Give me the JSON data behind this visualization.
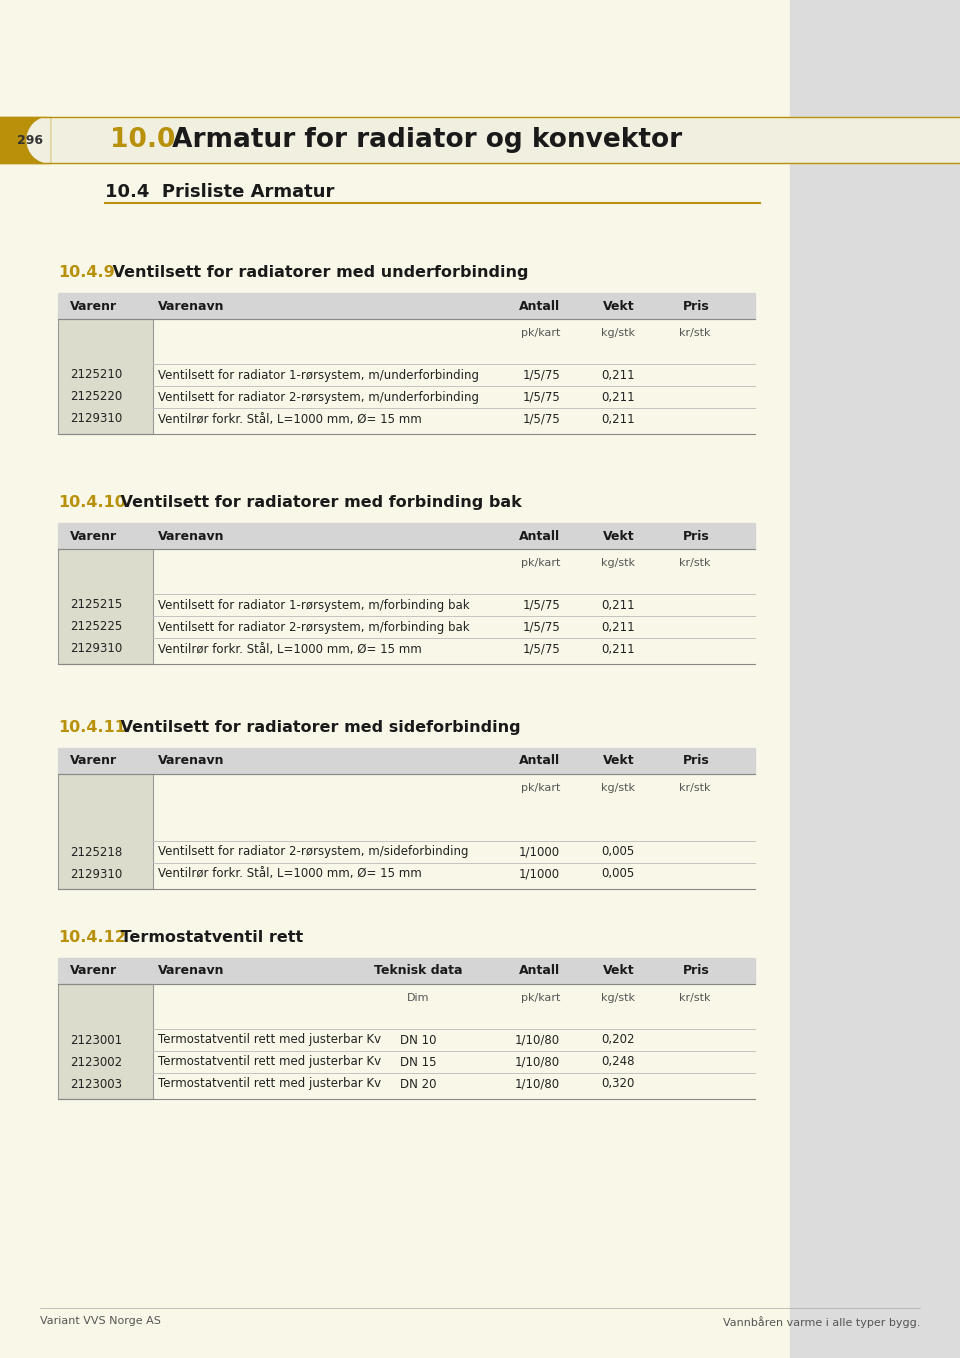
{
  "page_num": "296",
  "main_title_num": "10.0",
  "main_title_text": " Armatur for radiator og konvektor",
  "section_title": "10.4  Prisliste Armatur",
  "bg_color": "#F9F8E8",
  "header_bar_bg": "#F0EFE0",
  "header_bar_gold_left": "#B8900A",
  "right_panel_color": "#DCDCDC",
  "table_header_bg": "#D5D5D5",
  "table_row_line_color": "#BBBBBB",
  "gold_color": "#B8900A",
  "img_box_bg": "#DCDCCC",
  "img_box_border": "#999999",
  "sections": [
    {
      "section_num": "10.4.9",
      "section_title": " Ventilsett for radiatorer med underforbinding",
      "col_headers": [
        "Varenr",
        "Varenavn",
        "Antall",
        "Vekt",
        "Pris"
      ],
      "col_subheaders": [
        "",
        "",
        "pk/kart",
        "kg/stk",
        "kr/stk"
      ],
      "has_teknisk": false,
      "rows": [
        [
          "2125210",
          "Ventilsett for radiator 1-rørsystem, m/underforbinding",
          "1/5/75",
          "0,211",
          ""
        ],
        [
          "2125220",
          "Ventilsett for radiator 2-rørsystem, m/underforbinding",
          "1/5/75",
          "0,211",
          ""
        ],
        [
          "2129310",
          "Ventilrør forkr. Stål, L=1000 mm, Ø= 15 mm",
          "1/5/75",
          "0,211",
          ""
        ]
      ]
    },
    {
      "section_num": "10.4.10",
      "section_title": " Ventilsett for radiatorer med forbinding bak",
      "col_headers": [
        "Varenr",
        "Varenavn",
        "Antall",
        "Vekt",
        "Pris"
      ],
      "col_subheaders": [
        "",
        "",
        "pk/kart",
        "kg/stk",
        "kr/stk"
      ],
      "has_teknisk": false,
      "rows": [
        [
          "2125215",
          "Ventilsett for radiator 1-rørsystem, m/forbinding bak",
          "1/5/75",
          "0,211",
          ""
        ],
        [
          "2125225",
          "Ventilsett for radiator 2-rørsystem, m/forbinding bak",
          "1/5/75",
          "0,211",
          ""
        ],
        [
          "2129310",
          "Ventilrør forkr. Stål, L=1000 mm, Ø= 15 mm",
          "1/5/75",
          "0,211",
          ""
        ]
      ]
    },
    {
      "section_num": "10.4.11",
      "section_title": " Ventilsett for radiatorer med sideforbinding",
      "col_headers": [
        "Varenr",
        "Varenavn",
        "Antall",
        "Vekt",
        "Pris"
      ],
      "col_subheaders": [
        "",
        "",
        "pk/kart",
        "kg/stk",
        "kr/stk"
      ],
      "has_teknisk": false,
      "rows": [
        [
          "2125218",
          "Ventilsett for radiator 2-rørsystem, m/sideforbinding",
          "1/1000",
          "0,005",
          ""
        ],
        [
          "2129310",
          "Ventilrør forkr. Stål, L=1000 mm, Ø= 15 mm",
          "1/1000",
          "0,005",
          ""
        ]
      ]
    },
    {
      "section_num": "10.4.12",
      "section_title": " Termostatventil rett",
      "col_headers": [
        "Varenr",
        "Varenavn",
        "Teknisk data",
        "Antall",
        "Vekt",
        "Pris"
      ],
      "col_subheaders": [
        "",
        "",
        "Dim",
        "pk/kart",
        "kg/stk",
        "kr/stk"
      ],
      "has_teknisk": true,
      "rows": [
        [
          "2123001",
          "Termostatventil rett med justerbar Kv",
          "DN 10",
          "1/10/80",
          "0,202",
          ""
        ],
        [
          "2123002",
          "Termostatventil rett med justerbar Kv",
          "DN 15",
          "1/10/80",
          "0,248",
          ""
        ],
        [
          "2123003",
          "Termostatventil rett med justerbar Kv",
          "DN 20",
          "1/10/80",
          "0,320",
          ""
        ]
      ]
    }
  ],
  "footer_left": "Variant VVS Norge AS",
  "footer_right": "Vannbåren varme i alle typer bygg."
}
